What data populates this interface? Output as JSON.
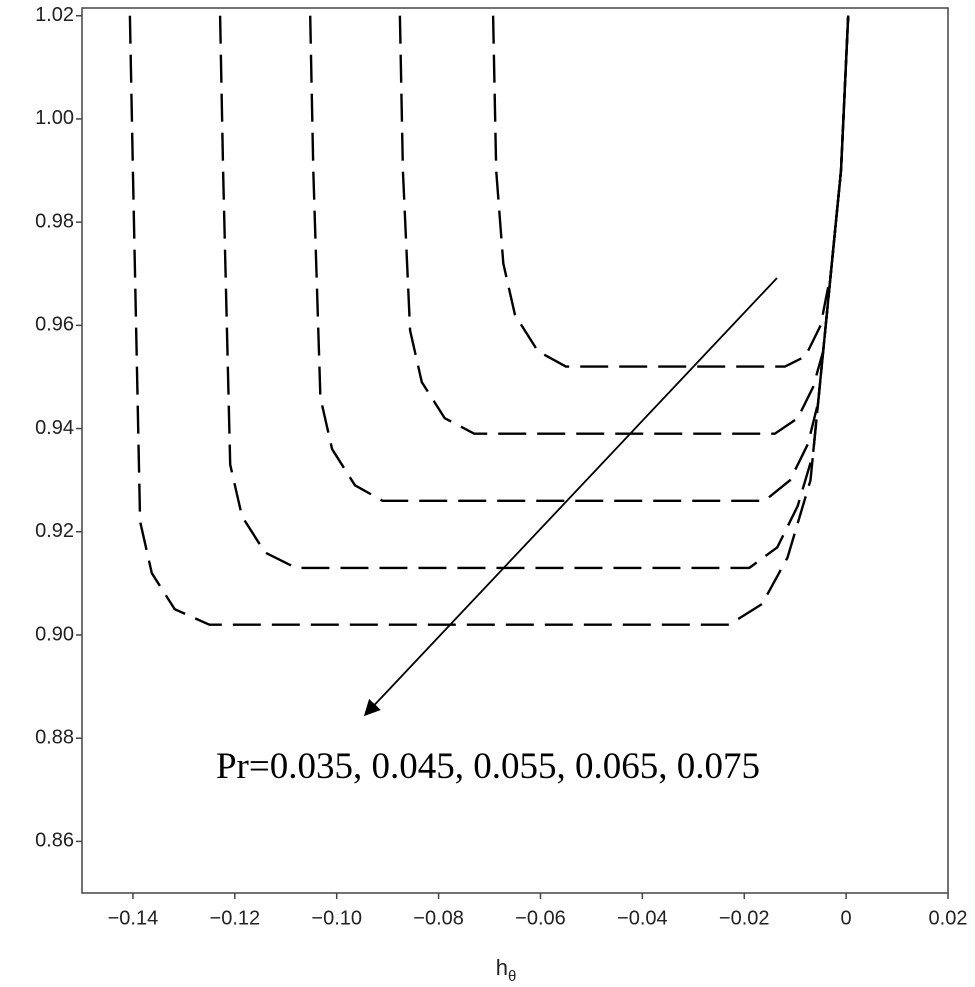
{
  "chart_data": {
    "type": "line",
    "annotation": "Pr=0.035, 0.045, 0.055, 0.065, 0.075",
    "x_label": "h",
    "x_label_subscript": "θ",
    "xlim": [
      -0.15,
      0.02
    ],
    "ylim": [
      0.85,
      1.0215
    ],
    "xticks": [
      {
        "value": -0.14,
        "label": "−0.14"
      },
      {
        "value": -0.12,
        "label": "−0.12"
      },
      {
        "value": -0.1,
        "label": "−0.10"
      },
      {
        "value": -0.08,
        "label": "−0.08"
      },
      {
        "value": -0.06,
        "label": "−0.06"
      },
      {
        "value": -0.04,
        "label": "−0.04"
      },
      {
        "value": -0.02,
        "label": "−0.02"
      },
      0,
      0.02
    ],
    "yticks": [
      0.86,
      0.88,
      {
        "value": 0.9,
        "label": "0.90"
      },
      0.92,
      0.94,
      0.96,
      0.98,
      {
        "value": 1,
        "label": "1.00"
      },
      1.02
    ],
    "dashed": true,
    "series": [
      {
        "color": "#000000",
        "x": [
          -0.0693,
          -0.0687,
          -0.0673,
          -0.065,
          -0.0605,
          -0.055,
          -0.03,
          -0.012,
          -0.008,
          -0.005,
          -0.003,
          -0.001,
          0.0004
        ],
        "y": [
          1.02,
          0.99,
          0.972,
          0.962,
          0.955,
          0.952,
          0.952,
          0.952,
          0.954,
          0.96,
          0.97,
          0.99,
          1.02
        ]
      },
      {
        "color": "#000000",
        "x": [
          -0.0876,
          -0.087,
          -0.0856,
          -0.0833,
          -0.0788,
          -0.073,
          -0.04,
          -0.014,
          -0.0095,
          -0.0065,
          -0.0045,
          -0.003,
          -0.001,
          0.0004
        ],
        "y": [
          1.02,
          0.99,
          0.959,
          0.949,
          0.942,
          0.939,
          0.939,
          0.939,
          0.942,
          0.948,
          0.955,
          0.97,
          0.99,
          1.02
        ]
      },
      {
        "color": "#000000",
        "x": [
          -0.1052,
          -0.1046,
          -0.1032,
          -0.1009,
          -0.0964,
          -0.091,
          -0.05,
          -0.016,
          -0.011,
          -0.0075,
          -0.0055,
          -0.003,
          -0.001,
          0.0004
        ],
        "y": [
          1.02,
          0.99,
          0.946,
          0.936,
          0.929,
          0.926,
          0.926,
          0.926,
          0.93,
          0.937,
          0.945,
          0.97,
          0.99,
          1.02
        ]
      },
      {
        "color": "#000000",
        "x": [
          -0.1229,
          -0.1223,
          -0.1209,
          -0.1186,
          -0.1141,
          -0.108,
          -0.06,
          -0.019,
          -0.0135,
          -0.0095,
          -0.0065,
          -0.003,
          -0.001,
          0.0004
        ],
        "y": [
          1.02,
          0.99,
          0.933,
          0.923,
          0.916,
          0.913,
          0.913,
          0.913,
          0.917,
          0.925,
          0.935,
          0.97,
          0.99,
          1.02
        ]
      },
      {
        "color": "#000000",
        "x": [
          -0.1406,
          -0.14,
          -0.1386,
          -0.1363,
          -0.1318,
          -0.125,
          -0.07,
          -0.023,
          -0.0165,
          -0.0115,
          -0.007,
          -0.003,
          -0.001,
          0.0004
        ],
        "y": [
          1.02,
          0.99,
          0.922,
          0.912,
          0.905,
          0.902,
          0.902,
          0.902,
          0.906,
          0.915,
          0.93,
          0.97,
          0.99,
          1.02
        ]
      }
    ]
  }
}
